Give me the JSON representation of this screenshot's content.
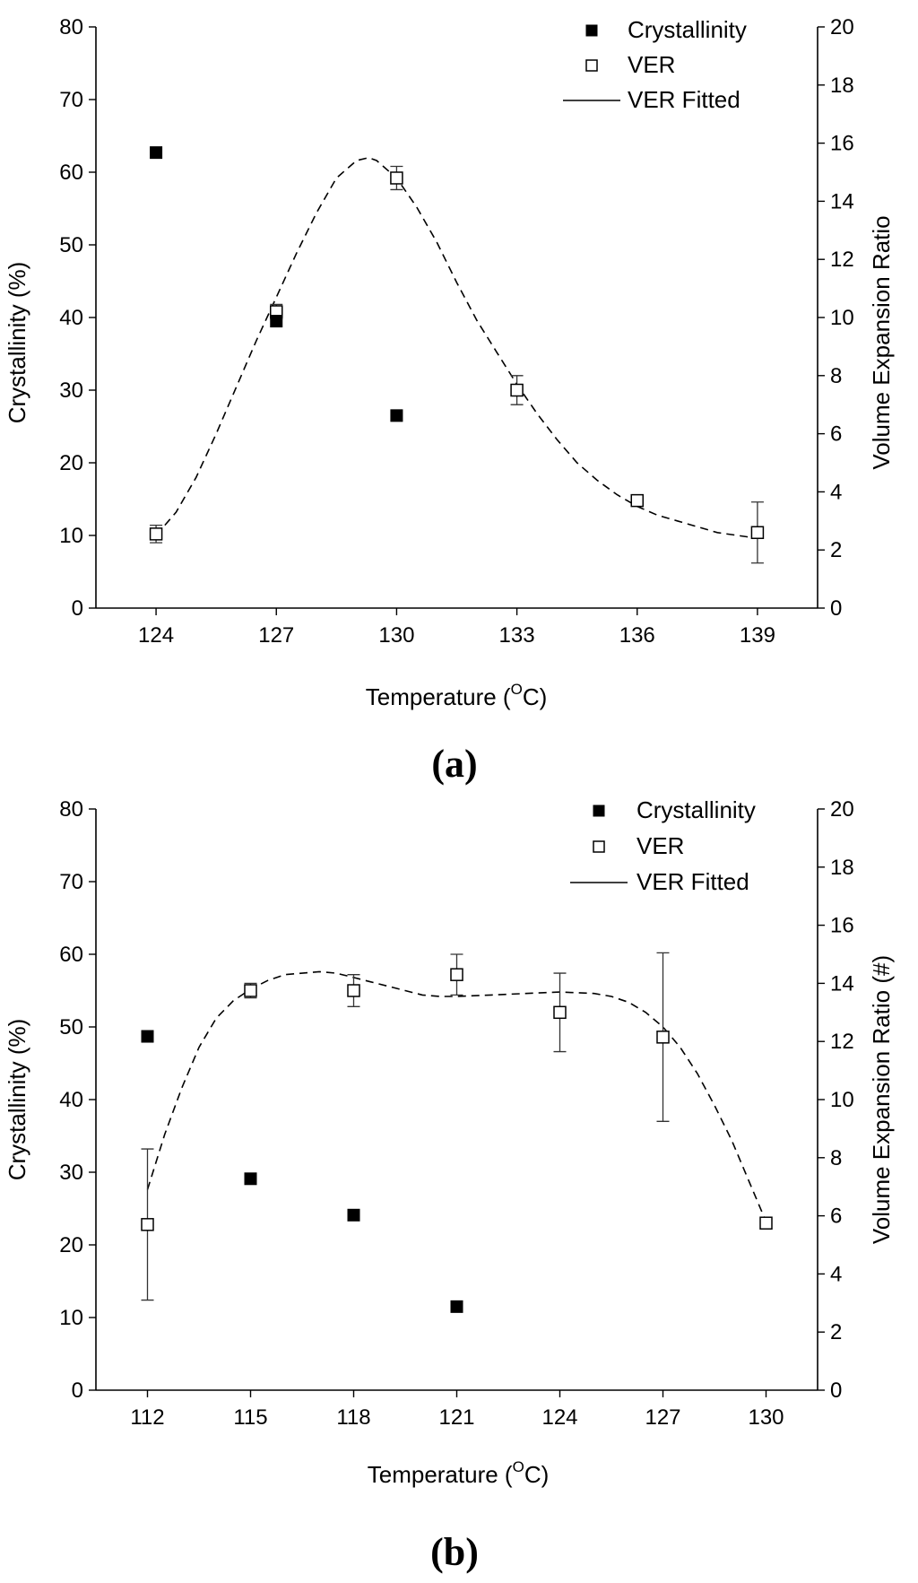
{
  "chart_data": [
    {
      "type": "scatter",
      "panel": "(a)",
      "xlabel": "Temperature (",
      "xlabel_sup": "O",
      "xlabel_end": "C)",
      "ylabel": "Crystallinity (%)",
      "y2label": "Volume Expansion Ratio",
      "xlim": [
        122.5,
        140.5
      ],
      "xticks": [
        124,
        127,
        130,
        133,
        136,
        139
      ],
      "ylim": [
        0,
        80
      ],
      "yticks": [
        0,
        10,
        20,
        30,
        40,
        50,
        60,
        70,
        80
      ],
      "y2lim": [
        0,
        20
      ],
      "y2ticks": [
        0,
        2,
        4,
        6,
        8,
        10,
        12,
        14,
        16,
        18,
        20
      ],
      "legend": [
        "Crystallinity",
        "VER",
        "VER Fitted"
      ],
      "crystallinity": {
        "x": [
          124,
          127,
          130
        ],
        "y": [
          62.7,
          39.5,
          26.5
        ]
      },
      "ver": {
        "x": [
          124,
          127,
          130,
          133,
          136,
          139
        ],
        "y": [
          2.55,
          10.2,
          14.8,
          7.5,
          3.7,
          2.6
        ],
        "err": [
          0.3,
          0.25,
          0.4,
          0.5,
          0.15,
          1.05
        ]
      },
      "ver_fitted": {
        "x": [
          124,
          124.5,
          125,
          125.5,
          126,
          126.5,
          127,
          127.5,
          128,
          128.5,
          129,
          129.3,
          129.5,
          130,
          130.5,
          131,
          131.5,
          132,
          132.5,
          133,
          133.5,
          134,
          134.5,
          135,
          135.5,
          136,
          136.5,
          137,
          137.5,
          138,
          138.5,
          139
        ],
        "y": [
          2.5,
          3.3,
          4.5,
          6.0,
          7.6,
          9.2,
          10.7,
          12.2,
          13.6,
          14.8,
          15.4,
          15.5,
          15.4,
          14.8,
          13.8,
          12.6,
          11.2,
          9.9,
          8.8,
          7.7,
          6.7,
          5.8,
          5.0,
          4.4,
          3.9,
          3.5,
          3.2,
          3.0,
          2.8,
          2.6,
          2.5,
          2.4
        ]
      }
    },
    {
      "type": "scatter",
      "panel": "(b)",
      "xlabel": "Temperature (",
      "xlabel_sup": "O",
      "xlabel_end": "C)",
      "ylabel": "Crystallinity (%)",
      "y2label": "Volume Expansion Ratio (#)",
      "xlim": [
        110.5,
        131.5
      ],
      "xticks": [
        112,
        115,
        118,
        121,
        124,
        127,
        130
      ],
      "ylim": [
        0,
        80
      ],
      "yticks": [
        0,
        10,
        20,
        30,
        40,
        50,
        60,
        70,
        80
      ],
      "y2lim": [
        0,
        20
      ],
      "y2ticks": [
        0,
        2,
        4,
        6,
        8,
        10,
        12,
        14,
        16,
        18,
        20
      ],
      "legend": [
        "Crystallinity",
        "VER",
        "VER Fitted"
      ],
      "crystallinity": {
        "x": [
          112,
          115,
          118,
          121
        ],
        "y": [
          48.7,
          29.1,
          24.1,
          11.5
        ]
      },
      "ver": {
        "x": [
          112,
          115,
          118,
          121,
          124,
          127,
          130
        ],
        "y": [
          5.7,
          13.75,
          13.75,
          14.3,
          13.0,
          12.15,
          5.75
        ],
        "err": [
          2.6,
          0.25,
          0.55,
          0.7,
          1.35,
          2.9,
          0.15
        ]
      },
      "ver_fitted": {
        "x": [
          112,
          112.5,
          113,
          113.5,
          114,
          114.5,
          115,
          115.5,
          116,
          116.5,
          117,
          117.5,
          118,
          118.5,
          119,
          119.5,
          120,
          120.5,
          121,
          122,
          123,
          124,
          125,
          125.5,
          126,
          126.5,
          127,
          127.5,
          128,
          128.5,
          129,
          129.5,
          130
        ],
        "y": [
          6.9,
          8.8,
          10.4,
          11.8,
          12.8,
          13.4,
          13.8,
          14.1,
          14.3,
          14.35,
          14.4,
          14.35,
          14.2,
          14.05,
          13.9,
          13.75,
          13.6,
          13.55,
          13.55,
          13.6,
          13.65,
          13.7,
          13.65,
          13.55,
          13.35,
          13.0,
          12.5,
          11.8,
          10.9,
          9.8,
          8.6,
          7.2,
          5.8
        ]
      }
    }
  ]
}
